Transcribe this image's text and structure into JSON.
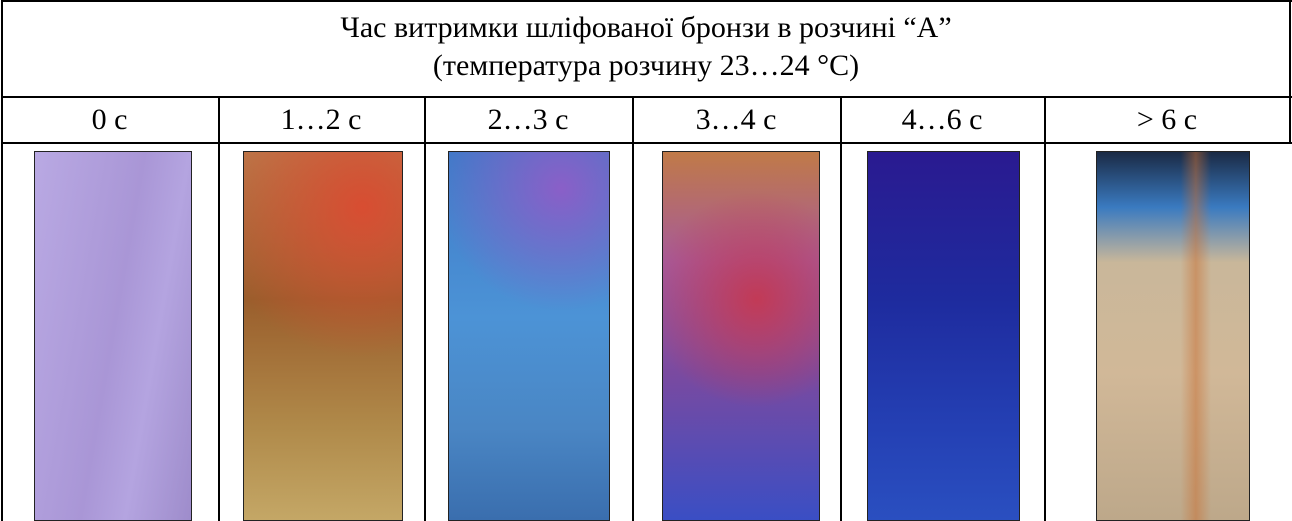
{
  "header": {
    "lines": [
      "Час витримки шліфованої бронзи в розчині “А”",
      "(температура розчину 23…24 °С)"
    ]
  },
  "columns": [
    "0 с",
    "1…2 с",
    "2…3 с",
    "3…4 с",
    "4…6 с",
    "> 6 с"
  ]
}
